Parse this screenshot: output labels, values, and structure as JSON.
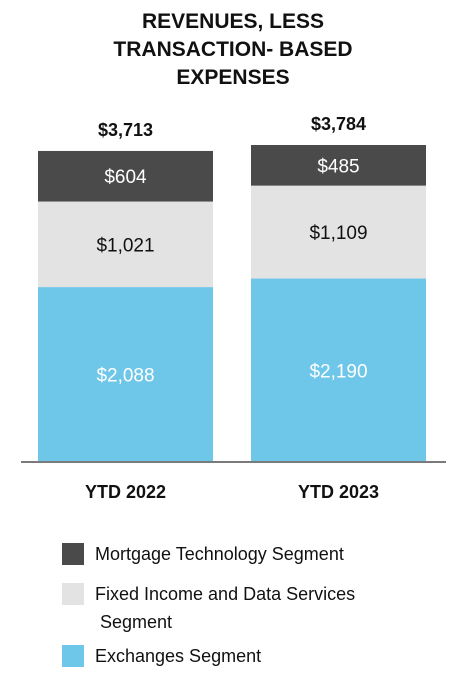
{
  "chart_data": {
    "type": "bar",
    "stacked": true,
    "title_lines": [
      "REVENUES, LESS",
      "TRANSACTION- BASED",
      "EXPENSES"
    ],
    "categories": [
      "YTD 2022",
      "YTD 2023"
    ],
    "totals": [
      "$3,713",
      "$3,784"
    ],
    "series": [
      {
        "name": "Exchanges Segment",
        "color": "#6ec6e8",
        "label_color": "#ffffff",
        "values": [
          2088,
          2190
        ],
        "labels": [
          "$2,088",
          "$2,190"
        ]
      },
      {
        "name": "Fixed Income and Data Services Segment",
        "color": "#e3e3e3",
        "label_color": "#111111",
        "values": [
          1021,
          1109
        ],
        "labels": [
          "$1,021",
          "$1,109"
        ]
      },
      {
        "name": "Mortgage Technology Segment",
        "color": "#4a4a4a",
        "label_color": "#ffffff",
        "values": [
          604,
          485
        ],
        "labels": [
          "$604",
          "$485"
        ]
      }
    ],
    "ylim": [
      0,
      3784
    ],
    "grid": false,
    "legend_position": "bottom-left",
    "legend": [
      {
        "lines": [
          "Mortgage Technology Segment"
        ],
        "color": "#4a4a4a"
      },
      {
        "lines": [
          "Fixed Income and Data Services",
          " Segment"
        ],
        "color": "#e3e3e3"
      },
      {
        "lines": [
          "Exchanges Segment"
        ],
        "color": "#6ec6e8"
      }
    ]
  }
}
